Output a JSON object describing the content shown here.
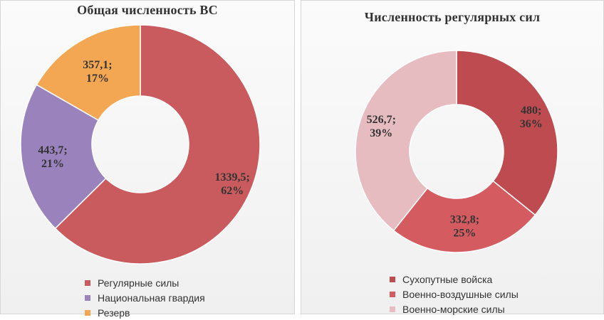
{
  "chart_data": [
    {
      "type": "pie",
      "title": "Общая численность  ВС",
      "categories": [
        "Регулярные силы",
        "Национальная гвардия",
        "Резерв"
      ],
      "values": [
        1339.5,
        443.7,
        357.1
      ],
      "percentages": [
        62,
        21,
        17
      ],
      "labels": [
        "1339,5;",
        "443,7;",
        "357,1;"
      ],
      "percent_labels": [
        "62%",
        "21%",
        "17%"
      ],
      "colors": [
        "#c95b5e",
        "#9a82bd",
        "#f3a752"
      ],
      "legend": "bottom"
    },
    {
      "type": "pie",
      "title": "Численность  регулярных сил",
      "categories": [
        "Сухопутные войска",
        "Военно-воздушные силы",
        "Военно-морские силы"
      ],
      "values": [
        480,
        332.8,
        526.7
      ],
      "percentages": [
        36,
        25,
        39
      ],
      "labels": [
        "480;",
        "332,8;",
        "526,7;"
      ],
      "percent_labels": [
        "36%",
        "25%",
        "39%"
      ],
      "colors": [
        "#bd4b4f",
        "#d45c61",
        "#e6bcc1"
      ],
      "legend": "bottom"
    }
  ]
}
